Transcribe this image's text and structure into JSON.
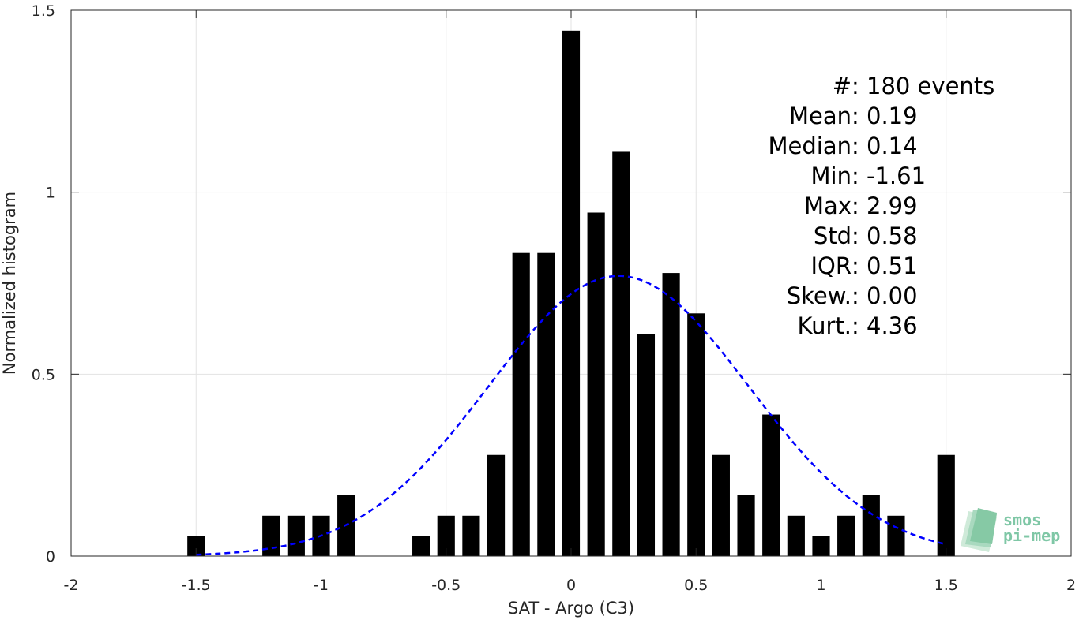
{
  "chart_data": {
    "type": "bar",
    "xlabel": "SAT - Argo (C3)",
    "ylabel": "Normalized histogram",
    "xlim": [
      -2,
      2
    ],
    "ylim": [
      0,
      1.5
    ],
    "xticks": [
      -2,
      -1.5,
      -1,
      -0.5,
      0,
      0.5,
      1,
      1.5,
      2
    ],
    "xtick_labels": [
      "-2",
      "-1.5",
      "-1",
      "-0.5",
      "0",
      "0.5",
      "1",
      "1.5",
      "2"
    ],
    "yticks": [
      0,
      0.5,
      1,
      1.5
    ],
    "ytick_labels": [
      "0",
      "0.5",
      "1",
      "1.5"
    ],
    "grid": true,
    "bar_width": 0.07,
    "x": [
      -1.5,
      -1.2,
      -1.1,
      -1.0,
      -0.9,
      -0.6,
      -0.5,
      -0.4,
      -0.3,
      -0.2,
      -0.1,
      0.0,
      0.1,
      0.2,
      0.3,
      0.4,
      0.5,
      0.6,
      0.7,
      0.8,
      0.9,
      1.0,
      1.1,
      1.2,
      1.3,
      1.5
    ],
    "values": [
      0.056,
      0.111,
      0.111,
      0.111,
      0.167,
      0.056,
      0.111,
      0.111,
      0.278,
      0.833,
      0.833,
      1.444,
      0.944,
      1.111,
      0.611,
      0.778,
      0.667,
      0.278,
      0.167,
      0.389,
      0.111,
      0.056,
      0.111,
      0.167,
      0.111,
      0.278
    ],
    "bar_color": "#000000",
    "fit_curve": {
      "style": "dashed",
      "color": "#0000ff",
      "mean": 0.19,
      "std": 0.52,
      "x_range": [
        -1.5,
        1.5
      ]
    },
    "annotations": [
      {
        "label": "#",
        "sep": " : ",
        "value": "180 events"
      },
      {
        "label": "Mean",
        "sep": " : ",
        "value": "0.19"
      },
      {
        "label": "Median",
        "sep": " : ",
        "value": "0.14"
      },
      {
        "label": "Min",
        "sep": " : ",
        "value": "-1.61"
      },
      {
        "label": "Max",
        "sep": " : ",
        "value": "2.99"
      },
      {
        "label": "Std",
        "sep": " : ",
        "value": "0.58"
      },
      {
        "label": "IQR",
        "sep": " : ",
        "value": "0.51"
      },
      {
        "label": "Skew.",
        "sep": " : ",
        "value": "0.00"
      },
      {
        "label": "Kurt.",
        "sep": " : ",
        "value": "4.36"
      }
    ]
  },
  "logo": {
    "line1": "smos",
    "line2": "pi-mep",
    "color": "#7fc7a6"
  }
}
